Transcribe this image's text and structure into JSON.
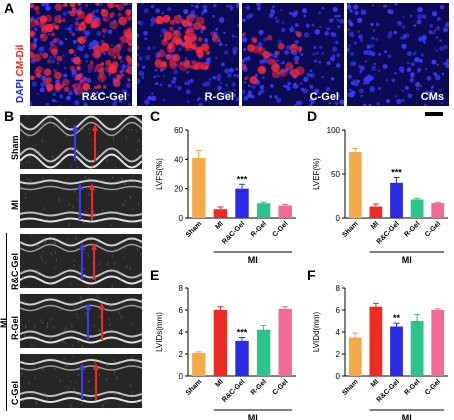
{
  "panels": {
    "a": "A",
    "b": "B",
    "c": "C",
    "d": "D",
    "e": "E",
    "f": "F"
  },
  "stain": {
    "dapi": "DAPI",
    "sep": "/",
    "cmdil": "CM-Dil",
    "dapi_color": "#2323ff",
    "cmdil_color": "#ff2020"
  },
  "fluorescence": [
    {
      "label": "R&C-Gel"
    },
    {
      "label": "R-Gel"
    },
    {
      "label": "C-Gel"
    },
    {
      "label": "CMs"
    }
  ],
  "echo": {
    "rows": [
      {
        "label": "Sham"
      },
      {
        "label": "MI"
      },
      {
        "label": "R&C-Gel"
      },
      {
        "label": "R-Gel"
      },
      {
        "label": "C-Gel"
      }
    ],
    "group_label": "MI"
  },
  "group_label": "MI",
  "colors": {
    "Sham": "#f4a94a",
    "MI": "#ee2a24",
    "R&C-Gel": "#2a2ae6",
    "R-Gel": "#2bc48a",
    "C-Gel": "#f06c96"
  },
  "chart_data": [
    {
      "type": "bar",
      "panel": "C",
      "ylabel": "LVFS(%)",
      "ylim": [
        0,
        60
      ],
      "yticks": [
        0,
        20,
        40,
        60
      ],
      "categories": [
        "Sham",
        "MI",
        "R&C-Gel",
        "R-Gel",
        "C-Gel"
      ],
      "values": [
        41,
        6,
        20,
        10,
        8.5
      ],
      "errors": [
        5,
        1.5,
        3,
        0.8,
        0.7
      ],
      "annotation": {
        "index": 2,
        "text": "***"
      }
    },
    {
      "type": "bar",
      "panel": "D",
      "ylabel": "LVEF(%)",
      "ylim": [
        0,
        100
      ],
      "yticks": [
        0,
        50,
        100
      ],
      "categories": [
        "Sham",
        "MI",
        "R&C-Gel",
        "R-Gel",
        "C-Gel"
      ],
      "values": [
        75,
        13,
        40,
        21,
        17
      ],
      "errors": [
        4,
        3,
        6,
        1,
        1
      ],
      "annotation": {
        "index": 2,
        "text": "***"
      }
    },
    {
      "type": "bar",
      "panel": "E",
      "ylabel": "LVIDs(mm)",
      "ylim": [
        0,
        8
      ],
      "yticks": [
        0,
        2,
        4,
        6,
        8
      ],
      "categories": [
        "Sham",
        "MI",
        "R&C-Gel",
        "R-Gel",
        "C-Gel"
      ],
      "values": [
        2.1,
        6.0,
        3.2,
        4.2,
        6.1
      ],
      "errors": [
        0.1,
        0.3,
        0.3,
        0.4,
        0.2
      ],
      "annotation": {
        "index": 2,
        "text": "***"
      }
    },
    {
      "type": "bar",
      "panel": "F",
      "ylabel": "LVIDd(mm)",
      "ylim": [
        0,
        8
      ],
      "yticks": [
        0,
        2,
        4,
        6,
        8
      ],
      "categories": [
        "Sham",
        "MI",
        "R&C-Gel",
        "R-Gel",
        "C-Gel"
      ],
      "values": [
        3.5,
        6.3,
        4.5,
        5.0,
        6.0
      ],
      "errors": [
        0.4,
        0.3,
        0.3,
        0.6,
        0.1
      ],
      "annotation": {
        "index": 2,
        "text": "**"
      }
    }
  ]
}
